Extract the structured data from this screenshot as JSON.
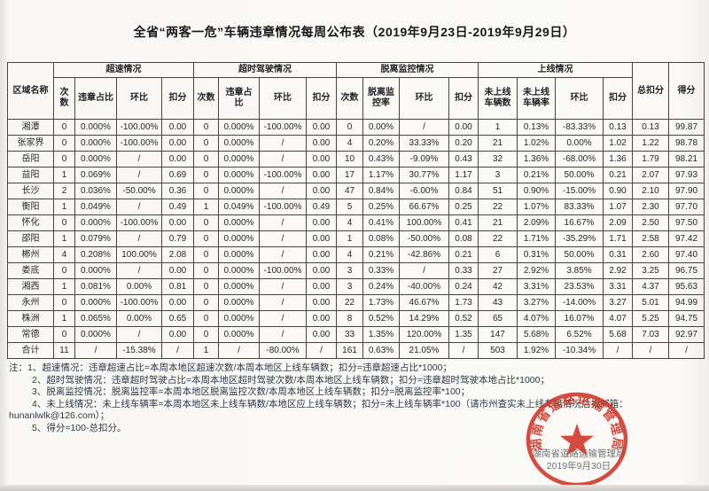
{
  "page": {
    "title": "全省“两客一危”车辆违章情况每周公布表（2019年9月23日-2019年9月29日）"
  },
  "table": {
    "corner_header": "区域名称",
    "groups": [
      {
        "label": "超速情况",
        "cols": [
          "次数",
          "违章占比",
          "环比",
          "扣分"
        ]
      },
      {
        "label": "超时驾驶情况",
        "cols": [
          "次数",
          "违章占比",
          "环比",
          "扣分"
        ]
      },
      {
        "label": "脱离监控情况",
        "cols": [
          "次数",
          "脱离监控率",
          "环比",
          "扣分"
        ]
      },
      {
        "label": "上线情况",
        "cols": [
          "未上线车辆数",
          "未上线车辆率",
          "环比",
          "扣分"
        ]
      }
    ],
    "total_header": "总扣分",
    "score_header": "得分",
    "rows": [
      {
        "region": "湘潭",
        "values": [
          "0",
          "0.000%",
          "-100.00%",
          "0.00",
          "0",
          "0.000%",
          "-100.00%",
          "0.00",
          "0",
          "0.00%",
          "/",
          "0.00",
          "1",
          "0.13%",
          "-83.33%",
          "0.13"
        ],
        "total": "0.13",
        "score": "99.87"
      },
      {
        "region": "张家界",
        "values": [
          "0",
          "0.000%",
          "-100.00%",
          "0.00",
          "0",
          "0.000%",
          "/",
          "0.00",
          "4",
          "0.20%",
          "33.33%",
          "0.20",
          "21",
          "1.02%",
          "0.00%",
          "1.02"
        ],
        "total": "1.22",
        "score": "98.78"
      },
      {
        "region": "岳阳",
        "values": [
          "0",
          "0.000%",
          "/",
          "0.00",
          "0",
          "0.000%",
          "/",
          "0.00",
          "10",
          "0.43%",
          "-9.09%",
          "0.43",
          "32",
          "1.36%",
          "-68.00%",
          "1.36"
        ],
        "total": "1.79",
        "score": "98.21"
      },
      {
        "region": "益阳",
        "values": [
          "1",
          "0.069%",
          "/",
          "0.69",
          "0",
          "0.000%",
          "-100.00%",
          "0.00",
          "17",
          "1.17%",
          "30.77%",
          "1.17",
          "3",
          "0.21%",
          "50.00%",
          "0.21"
        ],
        "total": "2.07",
        "score": "97.93"
      },
      {
        "region": "长沙",
        "values": [
          "2",
          "0.036%",
          "-50.00%",
          "0.36",
          "0",
          "0.000%",
          "/",
          "0.00",
          "47",
          "0.84%",
          "-6.00%",
          "0.84",
          "51",
          "0.90%",
          "-15.00%",
          "0.90"
        ],
        "total": "2.10",
        "score": "97.90"
      },
      {
        "region": "衡阳",
        "values": [
          "1",
          "0.049%",
          "/",
          "0.49",
          "1",
          "0.049%",
          "-100.00%",
          "0.49",
          "5",
          "0.25%",
          "66.67%",
          "0.25",
          "22",
          "1.07%",
          "83.33%",
          "1.07"
        ],
        "total": "2.30",
        "score": "97.70"
      },
      {
        "region": "怀化",
        "values": [
          "0",
          "0.000%",
          "-100.00%",
          "0.00",
          "0",
          "0.000%",
          "/",
          "0.00",
          "4",
          "0.41%",
          "100.00%",
          "0.41",
          "21",
          "2.09%",
          "16.67%",
          "2.09"
        ],
        "total": "2.50",
        "score": "97.50"
      },
      {
        "region": "邵阳",
        "values": [
          "1",
          "0.079%",
          "/",
          "0.79",
          "0",
          "0.000%",
          "/",
          "0.00",
          "1",
          "0.08%",
          "-50.00%",
          "0.08",
          "22",
          "1.71%",
          "-35.29%",
          "1.71"
        ],
        "total": "2.58",
        "score": "97.42"
      },
      {
        "region": "郴州",
        "values": [
          "4",
          "0.208%",
          "100.00%",
          "2.08",
          "0",
          "0.000%",
          "/",
          "0.00",
          "4",
          "0.21%",
          "-42.86%",
          "0.21",
          "6",
          "0.31%",
          "50.00%",
          "0.31"
        ],
        "total": "2.60",
        "score": "97.40"
      },
      {
        "region": "娄底",
        "values": [
          "0",
          "0.000%",
          "/",
          "0.00",
          "0",
          "0.000%",
          "-100.00%",
          "0.00",
          "3",
          "0.33%",
          "/",
          "0.33",
          "27",
          "2.92%",
          "3.85%",
          "2.92"
        ],
        "total": "3.25",
        "score": "96.75"
      },
      {
        "region": "湘西",
        "values": [
          "1",
          "0.081%",
          "0.00%",
          "0.81",
          "0",
          "0.000%",
          "/",
          "0.00",
          "3",
          "0.24%",
          "-40.00%",
          "0.24",
          "42",
          "3.31%",
          "23.53%",
          "3.31"
        ],
        "total": "4.37",
        "score": "95.63"
      },
      {
        "region": "永州",
        "values": [
          "0",
          "0.000%",
          "-100.00%",
          "0.00",
          "0",
          "0.000%",
          "/",
          "0.00",
          "22",
          "1.73%",
          "46.67%",
          "1.73",
          "43",
          "3.27%",
          "-14.00%",
          "3.27"
        ],
        "total": "5.01",
        "score": "94.99"
      },
      {
        "region": "株洲",
        "values": [
          "1",
          "0.065%",
          "0.00%",
          "0.65",
          "0",
          "0.000%",
          "/",
          "0.00",
          "8",
          "0.52%",
          "14.29%",
          "0.52",
          "65",
          "4.07%",
          "16.07%",
          "4.07"
        ],
        "total": "5.25",
        "score": "94.75"
      },
      {
        "region": "常德",
        "values": [
          "0",
          "0.000%",
          "/",
          "0.00",
          "0",
          "0.000%",
          "/",
          "0.00",
          "33",
          "1.35%",
          "120.00%",
          "1.35",
          "147",
          "5.68%",
          "6.52%",
          "5.68"
        ],
        "total": "7.03",
        "score": "92.97"
      },
      {
        "region": "合计",
        "values": [
          "11",
          "/",
          "-15.38%",
          "/",
          "1",
          "/",
          "-80.00%",
          "/",
          "161",
          "0.63%",
          "21.05%",
          "/",
          "503",
          "1.92%",
          "-10.34%",
          "/"
        ],
        "total": "/",
        "score": "/"
      }
    ]
  },
  "notes": [
    "注：1、超速情况：违章超速占比=本周本地区超速次数/本周本地区上线车辆数；扣分=违章超速占比*1000；",
    "2、超时驾驶情况：违章超时驾驶占比=本周本地区超时驾驶次数/本周本地区上线车辆数；扣分=违章超时驾驶本地占比*1000；",
    "3、脱离监控情况：脱离监控率=本周本地区脱离监控次数/本周本地区上线车辆数；扣分=脱离监控率*100；",
    "4、未上线情况：未上线车辆率=本周本地区未上线车辆数/本地区应上线车辆数；扣分=未上线车辆率*100（请市州查实未上线车辆情况后报邮箱：",
    "hunanlwlk@126.com）；",
    "5、得分=100-总扣分。"
  ],
  "stamp": {
    "seal_text": "湖南省道路运输管理局",
    "org_line": "湖南省道路运输管理局",
    "date_line": "2019年9月30日",
    "seal_color": "#cf3526"
  }
}
